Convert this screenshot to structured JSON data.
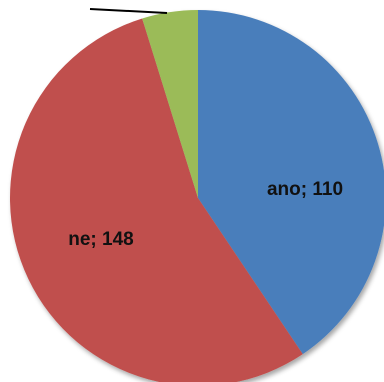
{
  "chart_data": {
    "type": "pie",
    "title": "",
    "start_angle_deg": 0,
    "direction": "clockwise",
    "legend": "none",
    "slices": [
      {
        "label": "ano",
        "value": 110,
        "data_label": "ano; 110",
        "color": "#4a7ebb"
      },
      {
        "label": "ne",
        "value": 148,
        "data_label": "ne; 148",
        "color": "#c0504d"
      },
      {
        "label": "",
        "value": 13,
        "data_label": "",
        "color": "#9bbb59"
      }
    ]
  }
}
